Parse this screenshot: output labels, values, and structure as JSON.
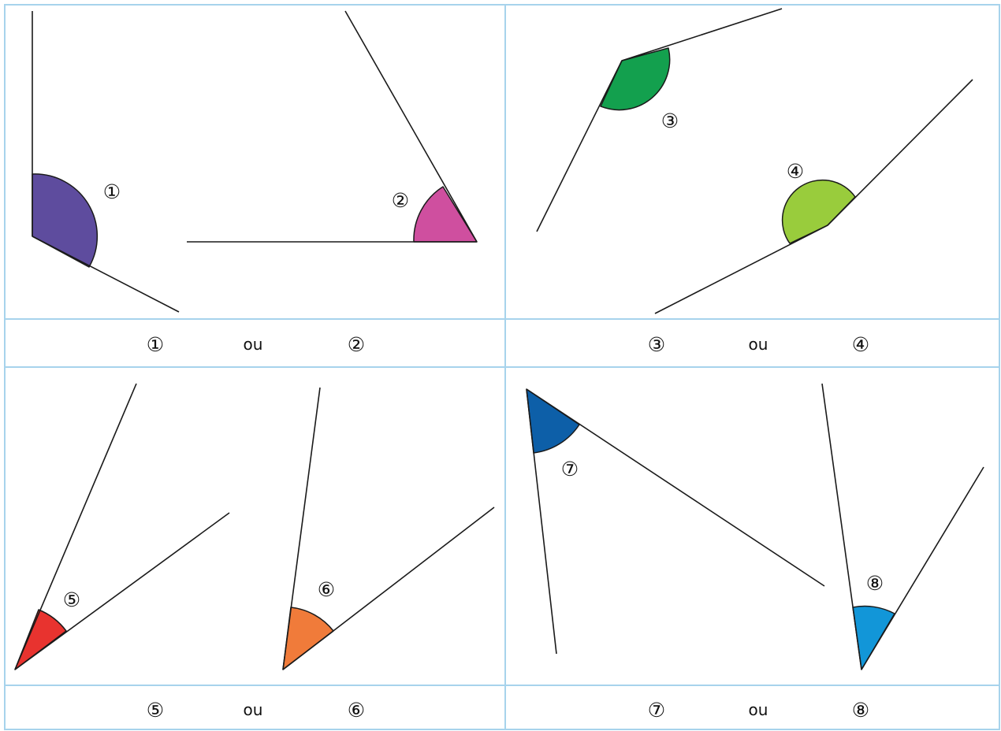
{
  "angles": [
    {
      "id": "1",
      "label": "①",
      "color": "#5e4c9e"
    },
    {
      "id": "2",
      "label": "②",
      "color": "#cf4f9f"
    },
    {
      "id": "3",
      "label": "③",
      "color": "#13a04e"
    },
    {
      "id": "4",
      "label": "④",
      "color": "#99cc3c"
    },
    {
      "id": "5",
      "label": "⑤",
      "color": "#e8332f"
    },
    {
      "id": "6",
      "label": "⑥",
      "color": "#f07b3a"
    },
    {
      "id": "7",
      "label": "⑦",
      "color": "#0d5fa8"
    },
    {
      "id": "8",
      "label": "⑧",
      "color": "#1296d8"
    }
  ],
  "comparisons": [
    {
      "left": "①",
      "word": "ou",
      "right": "②"
    },
    {
      "left": "③",
      "word": "ou",
      "right": "④"
    },
    {
      "left": "⑤",
      "word": "ou",
      "right": "⑥"
    },
    {
      "left": "⑦",
      "word": "ou",
      "right": "⑧"
    }
  ],
  "colors": {
    "grid": "#a7d3ec",
    "ink": "#1a1a1a",
    "background": "#ffffff"
  }
}
